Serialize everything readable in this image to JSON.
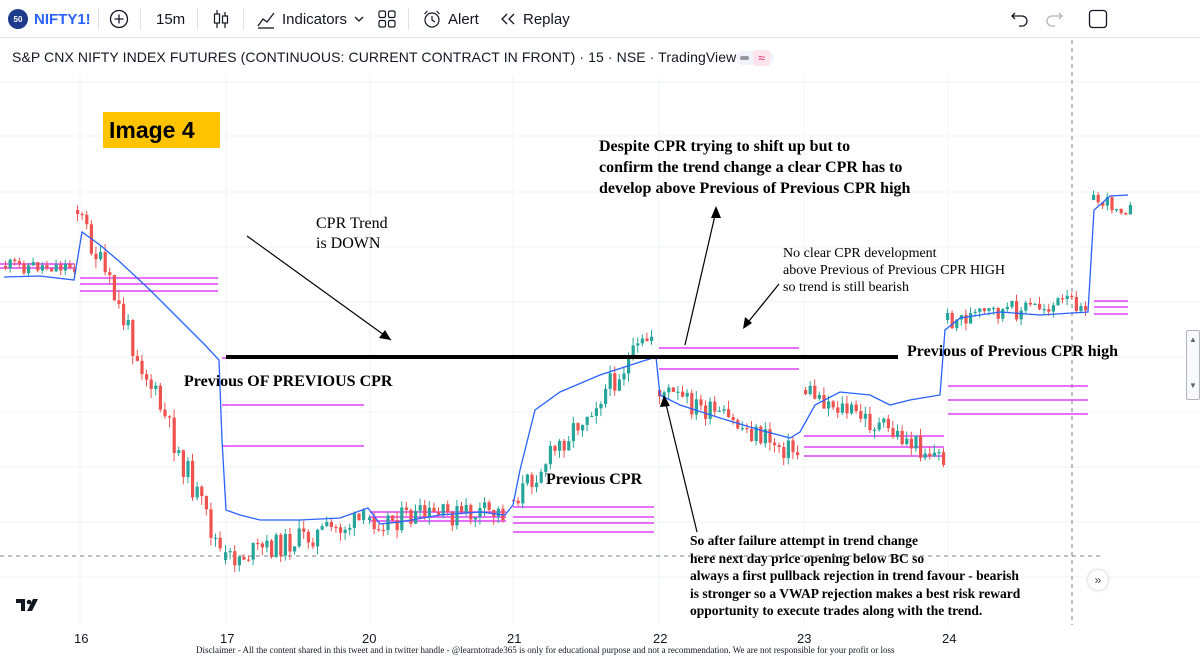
{
  "toolbar": {
    "symbol_badge": "50",
    "symbol": "NIFTY1!",
    "interval": "15m",
    "indicators": "Indicators",
    "alert": "Alert",
    "replay": "Replay",
    "icons": [
      "plus-circle-icon",
      "candles-icon",
      "indicators-icon",
      "layout-grid-icon",
      "alarm-icon",
      "replay-icon",
      "undo-icon",
      "redo-icon",
      "fullscreen-icon"
    ]
  },
  "header": {
    "title": "S&P CNX NIFTY INDEX FUTURES (CONTINUOUS: CURRENT CONTRACT IN FRONT) · 15 · NSE · TradingView"
  },
  "badge": {
    "text": "Image 4",
    "color": "#ffc300"
  },
  "annotations": {
    "despite": [
      "Despite CPR trying to shift up but to",
      "confirm the trend change a clear CPR has to",
      "develop above Previous of Previous CPR high"
    ],
    "cpr_trend": [
      "CPR Trend",
      "is DOWN"
    ],
    "no_clear": [
      "No clear CPR development",
      "above Previous of Previous CPR HIGH",
      "so trend is still bearish"
    ],
    "prev_of_prev_high": "Previous of Previous CPR high",
    "prev_of_prev_cpr": "Previous OF PREVIOUS CPR",
    "prev_cpr": "Previous CPR",
    "so_after": [
      "So after failure attempt in trend change",
      "here next day price opening below BC so",
      "always a first pullback  rejection in trend favour - bearish",
      "is stronger so a VWAP rejection makes a best risk reward",
      "opportunity to execute trades along with the trend."
    ]
  },
  "xaxis": {
    "labels": [
      "16",
      "17",
      "20",
      "21",
      "22",
      "23",
      "24"
    ]
  },
  "disclaimer": "Disclaimer - All the content shared in this tweet and in twitter handle - @learntotrade365 is only for educational purpose and not a recommendation. We are not responsible for your profit or loss",
  "colors": {
    "up": "#26a69a",
    "down": "#ef5350",
    "vwap": "#2962ff",
    "cpr": "#e040fb",
    "level": "#000000"
  }
}
